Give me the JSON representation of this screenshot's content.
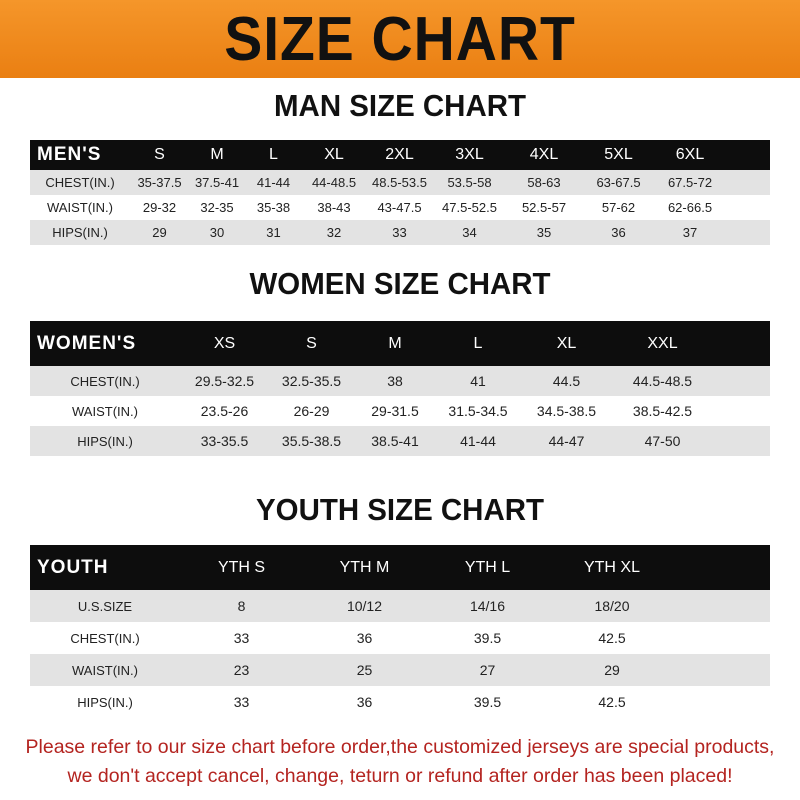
{
  "title": "SIZE CHART",
  "men": {
    "title": "MAN SIZE CHART",
    "header": "MEN'S",
    "sizes": [
      "S",
      "M",
      "L",
      "XL",
      "2XL",
      "3XL",
      "4XL",
      "5XL",
      "6XL"
    ],
    "rows": [
      {
        "label": "CHEST(IN.)",
        "values": [
          "35-37.5",
          "37.5-41",
          "41-44",
          "44-48.5",
          "48.5-53.5",
          "53.5-58",
          "58-63",
          "63-67.5",
          "67.5-72"
        ]
      },
      {
        "label": "WAIST(IN.)",
        "values": [
          "29-32",
          "32-35",
          "35-38",
          "38-43",
          "43-47.5",
          "47.5-52.5",
          "52.5-57",
          "57-62",
          "62-66.5"
        ]
      },
      {
        "label": "HIPS(IN.)",
        "values": [
          "29",
          "30",
          "31",
          "32",
          "33",
          "34",
          "35",
          "36",
          "37"
        ]
      }
    ]
  },
  "women": {
    "title": "WOMEN SIZE CHART",
    "header": "WOMEN'S",
    "sizes": [
      "XS",
      "S",
      "M",
      "L",
      "XL",
      "XXL"
    ],
    "rows": [
      {
        "label": "CHEST(IN.)",
        "values": [
          "29.5-32.5",
          "32.5-35.5",
          "38",
          "41",
          "44.5",
          "44.5-48.5"
        ]
      },
      {
        "label": "WAIST(IN.)",
        "values": [
          "23.5-26",
          "26-29",
          "29-31.5",
          "31.5-34.5",
          "34.5-38.5",
          "38.5-42.5"
        ]
      },
      {
        "label": "HIPS(IN.)",
        "values": [
          "33-35.5",
          "35.5-38.5",
          "38.5-41",
          "41-44",
          "44-47",
          "47-50"
        ]
      }
    ]
  },
  "youth": {
    "title": "YOUTH SIZE CHART",
    "header": "YOUTH",
    "sizes": [
      "YTH S",
      "YTH M",
      "YTH L",
      "YTH XL"
    ],
    "rows": [
      {
        "label": "U.S.SIZE",
        "values": [
          "8",
          "10/12",
          "14/16",
          "18/20"
        ]
      },
      {
        "label": "CHEST(IN.)",
        "values": [
          "33",
          "36",
          "39.5",
          "42.5"
        ]
      },
      {
        "label": "WAIST(IN.)",
        "values": [
          "23",
          "25",
          "27",
          "29"
        ]
      },
      {
        "label": "HIPS(IN.)",
        "values": [
          "33",
          "36",
          "39.5",
          "42.5"
        ]
      }
    ]
  },
  "note": {
    "line1": "Please refer to our size chart before order,the customized jerseys are special products,",
    "line2": "we don't accept cancel, change, teturn or refund after order has been placed!"
  },
  "colors": {
    "banner": "#ef8a1c",
    "header": "#0d0d0d",
    "stripe": "#e3e3e3",
    "note": "#b42420"
  }
}
